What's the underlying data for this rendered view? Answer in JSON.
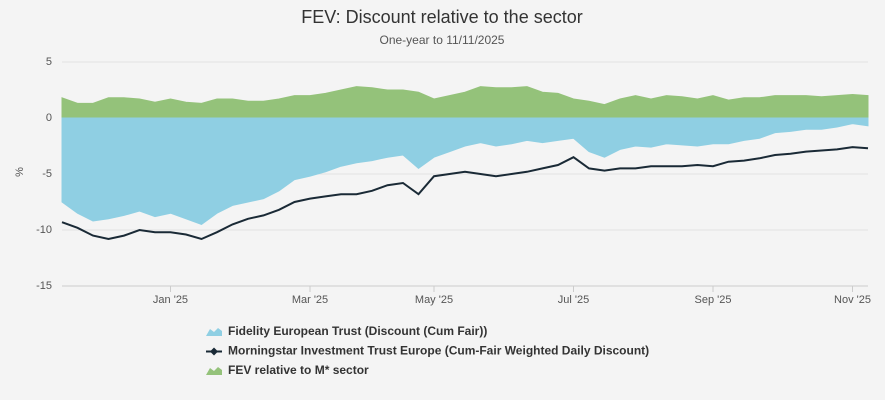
{
  "chart_data": {
    "type": "line",
    "title": "FEV: Discount relative to the sector",
    "subtitle": "One-year to 11/11/2025",
    "y_label": "%",
    "categories": [
      null,
      null,
      null,
      null,
      null,
      null,
      null,
      "Jan '25",
      null,
      null,
      null,
      null,
      null,
      null,
      null,
      null,
      "Mar '25",
      null,
      null,
      null,
      null,
      null,
      null,
      null,
      "May '25",
      null,
      null,
      null,
      null,
      null,
      null,
      null,
      null,
      "Jul '25",
      null,
      null,
      null,
      null,
      null,
      null,
      null,
      null,
      "Sep '25",
      null,
      null,
      null,
      null,
      null,
      null,
      null,
      null,
      "Nov '25",
      null
    ],
    "ylim": [
      -15,
      5
    ],
    "yticks": [
      -15,
      -10,
      -5,
      0,
      5
    ],
    "grid": true,
    "series": [
      {
        "name": "FEV relative to M* sector",
        "color": "#94c27a",
        "kind": "area",
        "values": [
          1.8,
          1.3,
          1.3,
          1.8,
          1.8,
          1.7,
          1.4,
          1.7,
          1.4,
          1.3,
          1.7,
          1.7,
          1.5,
          1.5,
          1.7,
          2.0,
          2.0,
          2.2,
          2.5,
          2.8,
          2.7,
          2.5,
          2.5,
          2.3,
          1.7,
          2.0,
          2.3,
          2.8,
          2.7,
          2.7,
          2.8,
          2.3,
          2.2,
          1.7,
          1.5,
          1.2,
          1.7,
          2.0,
          1.7,
          2.0,
          1.9,
          1.7,
          2.0,
          1.6,
          1.8,
          1.8,
          2.0,
          2.0,
          2.0,
          1.9,
          2.0,
          2.1,
          2.0
        ]
      },
      {
        "name": "Fidelity European Trust (Discount (Cum Fair))",
        "color": "#8fcfe3",
        "kind": "area",
        "values": [
          -7.5,
          -8.5,
          -9.2,
          -9.0,
          -8.7,
          -8.3,
          -8.8,
          -8.5,
          -9.0,
          -9.5,
          -8.5,
          -7.8,
          -7.5,
          -7.2,
          -6.5,
          -5.5,
          -5.2,
          -4.8,
          -4.3,
          -4.0,
          -3.8,
          -3.5,
          -3.3,
          -4.5,
          -3.5,
          -3.0,
          -2.5,
          -2.2,
          -2.5,
          -2.3,
          -2.0,
          -2.2,
          -2.0,
          -1.8,
          -3.0,
          -3.5,
          -2.8,
          -2.5,
          -2.6,
          -2.3,
          -2.4,
          -2.5,
          -2.3,
          -2.3,
          -2.0,
          -1.8,
          -1.3,
          -1.2,
          -1.0,
          -1.0,
          -0.8,
          -0.5,
          -0.7
        ]
      },
      {
        "name": "Morningstar Investment Trust Europe (Cum-Fair Weighted Daily Discount)",
        "color": "#1a2a36",
        "kind": "line",
        "values": [
          -9.3,
          -9.8,
          -10.5,
          -10.8,
          -10.5,
          -10.0,
          -10.2,
          -10.2,
          -10.4,
          -10.8,
          -10.2,
          -9.5,
          -9.0,
          -8.7,
          -8.2,
          -7.5,
          -7.2,
          -7.0,
          -6.8,
          -6.8,
          -6.5,
          -6.0,
          -5.8,
          -6.8,
          -5.2,
          -5.0,
          -4.8,
          -5.0,
          -5.2,
          -5.0,
          -4.8,
          -4.5,
          -4.2,
          -3.5,
          -4.5,
          -4.7,
          -4.5,
          -4.5,
          -4.3,
          -4.3,
          -4.3,
          -4.2,
          -4.3,
          -3.9,
          -3.8,
          -3.6,
          -3.3,
          -3.2,
          -3.0,
          -2.9,
          -2.8,
          -2.6,
          -2.7
        ]
      }
    ],
    "legend_order": [
      1,
      2,
      0
    ]
  }
}
